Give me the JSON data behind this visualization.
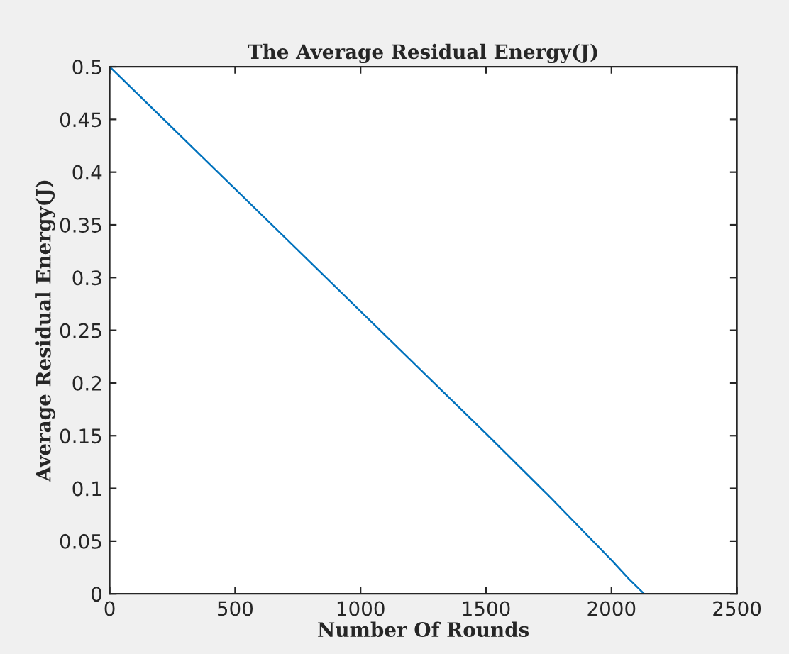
{
  "chart_data": {
    "type": "line",
    "title": "The Average Residual Energy(J)",
    "xlabel": "Number Of Rounds",
    "ylabel": "Average Residual Energy(J)",
    "x": [
      0,
      250,
      500,
      750,
      1000,
      1250,
      1500,
      1750,
      2000,
      2070,
      2130
    ],
    "series": [
      {
        "color": "#0072bd",
        "values": [
          0.5,
          0.442,
          0.384,
          0.326,
          0.268,
          0.21,
          0.152,
          0.093,
          0.032,
          0.014,
          0
        ]
      }
    ],
    "xlim": [
      0,
      2500
    ],
    "xticks": [
      0,
      500,
      1000,
      1500,
      2000,
      2500
    ],
    "ylim": [
      0,
      0.5
    ],
    "yticks": [
      0,
      0.05,
      0.1,
      0.15,
      0.2,
      0.25,
      0.3,
      0.35,
      0.4,
      0.45,
      0.5
    ],
    "grid": false,
    "line_style": "solid",
    "marker": "none"
  }
}
